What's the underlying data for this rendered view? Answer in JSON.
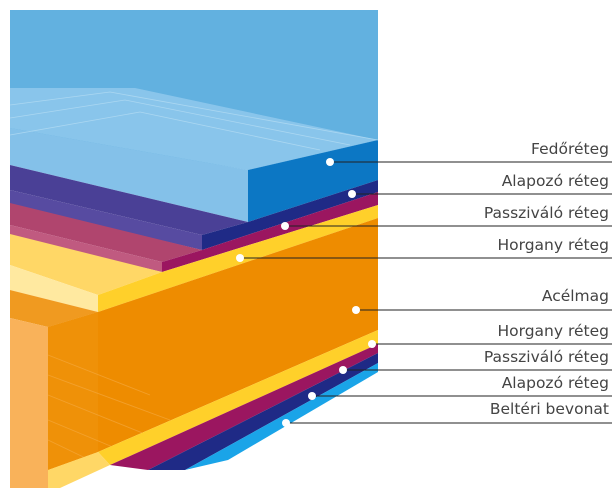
{
  "labels": {
    "top_coat": "Fedőréteg",
    "primer_top": "Alapozó réteg",
    "passivation_top": "Passziváló réteg",
    "zinc_top": "Horgany réteg",
    "steel_core": "Acélmag",
    "zinc_bottom": "Horgany réteg",
    "passivation_bottom": "Passziváló réteg",
    "primer_bottom": "Alapozó réteg",
    "back_coat": "Beltéri bevonat"
  },
  "colors": {
    "top_coat": "#6ab3e0",
    "primer": "#4a4096",
    "passivation": "#b2466f",
    "zinc": "#ffd24d",
    "steel": "#ee8e00",
    "back_coat": "#1aa4e8"
  }
}
